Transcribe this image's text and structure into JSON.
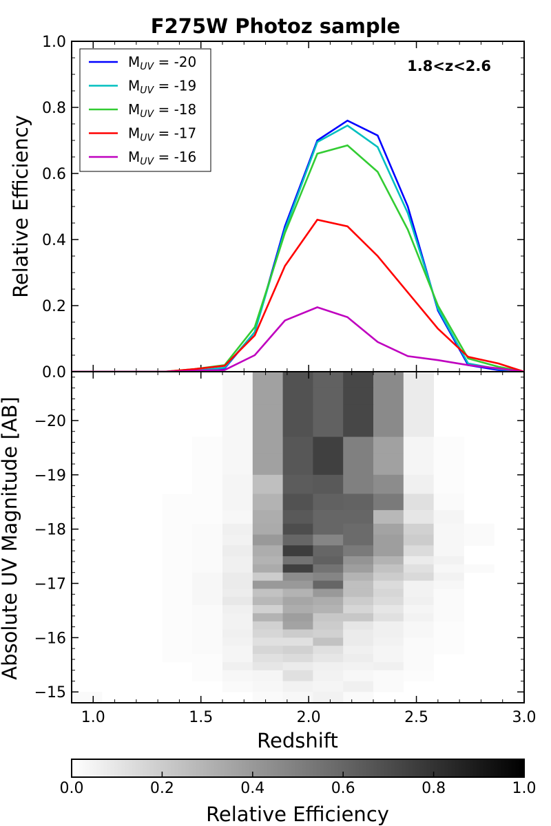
{
  "chart_data": [
    {
      "type": "line",
      "title": "F275W Photoz sample",
      "ylabel": "Relative Efficiency",
      "xlim": [
        0.9,
        3.0
      ],
      "ylim": [
        0.0,
        1.0
      ],
      "yticks": [
        "0.0",
        "0.2",
        "0.4",
        "0.6",
        "0.8",
        "1.0"
      ],
      "annotation": "1.8<z<2.6",
      "legend_position": "top-left",
      "x": [
        0.9,
        1.05,
        1.18,
        1.33,
        1.47,
        1.61,
        1.75,
        1.89,
        2.04,
        2.18,
        2.32,
        2.46,
        2.6,
        2.74,
        2.88,
        3.0
      ],
      "series": [
        {
          "name": "M_UV = -20",
          "label_main": "M",
          "label_sub": "UV",
          "label_rest": " = -20",
          "color": "#0000ff",
          "values": [
            0.0,
            0.0,
            0.0,
            0.0,
            0.002,
            0.01,
            0.12,
            0.44,
            0.7,
            0.76,
            0.715,
            0.5,
            0.185,
            0.02,
            0.005,
            0.0
          ]
        },
        {
          "name": "M_UV = -19",
          "label_main": "M",
          "label_sub": "UV",
          "label_rest": " = -19",
          "color": "#00bfbf",
          "values": [
            0.0,
            0.0,
            0.0,
            0.0,
            0.003,
            0.012,
            0.12,
            0.43,
            0.695,
            0.745,
            0.68,
            0.48,
            0.19,
            0.025,
            0.008,
            0.0
          ]
        },
        {
          "name": "M_UV = -18",
          "label_main": "M",
          "label_sub": "UV",
          "label_rest": " = -18",
          "color": "#33cc33",
          "values": [
            0.0,
            0.0,
            0.0,
            0.0,
            0.008,
            0.02,
            0.135,
            0.42,
            0.66,
            0.685,
            0.605,
            0.43,
            0.2,
            0.04,
            0.015,
            0.0
          ]
        },
        {
          "name": "M_UV = -17",
          "label_main": "M",
          "label_sub": "UV",
          "label_rest": " = -17",
          "color": "#ff0000",
          "values": [
            0.0,
            0.0,
            0.0,
            0.0,
            0.008,
            0.018,
            0.11,
            0.32,
            0.46,
            0.44,
            0.35,
            0.24,
            0.13,
            0.045,
            0.025,
            0.0
          ]
        },
        {
          "name": "M_UV = -16",
          "label_main": "M",
          "label_sub": "UV",
          "label_rest": " = -16",
          "color": "#bf00bf",
          "values": [
            0.0,
            0.0,
            0.0,
            0.0,
            0.003,
            0.005,
            0.05,
            0.155,
            0.195,
            0.165,
            0.09,
            0.047,
            0.035,
            0.02,
            0.01,
            0.0
          ]
        }
      ]
    },
    {
      "type": "heatmap",
      "xlabel": "Redshift",
      "ylabel": "Absolute UV Magnitude [AB]",
      "xlim": [
        0.9,
        3.0
      ],
      "ylim": [
        -14.8,
        -20.9
      ],
      "xticks": [
        "1.0",
        "1.5",
        "2.0",
        "2.5",
        "3.0"
      ],
      "yticks": [
        "−20",
        "−19",
        "−18",
        "−17",
        "−16",
        "−15"
      ],
      "x_edges": [
        0.9,
        1.04,
        1.18,
        1.32,
        1.46,
        1.6,
        1.74,
        1.88,
        2.02,
        2.16,
        2.3,
        2.44,
        2.58,
        2.72,
        2.86,
        3.0
      ],
      "y_edges": [
        -20.9,
        -20.6,
        -20.3,
        -20.0,
        -19.7,
        -19.4,
        -19.0,
        -18.65,
        -18.35,
        -18.1,
        -17.9,
        -17.7,
        -17.5,
        -17.35,
        -17.2,
        -17.05,
        -16.9,
        -16.75,
        -16.6,
        -16.45,
        -16.3,
        -16.15,
        -16.0,
        -15.85,
        -15.7,
        -15.55,
        -15.4,
        -15.2,
        -15.0,
        -14.8
      ],
      "z": [
        [
          0.0,
          0.0,
          0.0,
          0.0,
          0.0,
          0.03,
          0.37,
          0.68,
          0.62,
          0.72,
          0.46,
          0.08,
          0.0,
          0.0,
          0.0
        ],
        [
          0.0,
          0.0,
          0.0,
          0.0,
          0.0,
          0.03,
          0.37,
          0.68,
          0.62,
          0.72,
          0.46,
          0.08,
          0.0,
          0.0,
          0.0
        ],
        [
          0.0,
          0.0,
          0.0,
          0.0,
          0.0,
          0.03,
          0.37,
          0.68,
          0.62,
          0.72,
          0.46,
          0.08,
          0.0,
          0.0,
          0.0
        ],
        [
          0.0,
          0.0,
          0.0,
          0.0,
          0.0,
          0.03,
          0.37,
          0.68,
          0.62,
          0.72,
          0.46,
          0.08,
          0.0,
          0.0,
          0.0
        ],
        [
          0.0,
          0.0,
          0.0,
          0.0,
          0.01,
          0.03,
          0.37,
          0.66,
          0.75,
          0.5,
          0.37,
          0.04,
          0.01,
          0.0,
          0.0
        ],
        [
          0.0,
          0.0,
          0.0,
          0.0,
          0.01,
          0.03,
          0.37,
          0.66,
          0.75,
          0.5,
          0.37,
          0.04,
          0.01,
          0.0,
          0.0
        ],
        [
          0.0,
          0.0,
          0.0,
          0.0,
          0.01,
          0.04,
          0.25,
          0.64,
          0.65,
          0.5,
          0.45,
          0.06,
          0.01,
          0.0,
          0.0
        ],
        [
          0.0,
          0.0,
          0.0,
          0.01,
          0.01,
          0.04,
          0.3,
          0.68,
          0.62,
          0.61,
          0.52,
          0.12,
          0.02,
          0.0,
          0.0
        ],
        [
          0.0,
          0.0,
          0.0,
          0.01,
          0.01,
          0.03,
          0.32,
          0.65,
          0.6,
          0.6,
          0.28,
          0.1,
          0.04,
          0.0,
          0.0
        ],
        [
          0.0,
          0.0,
          0.0,
          0.01,
          0.02,
          0.06,
          0.33,
          0.7,
          0.6,
          0.58,
          0.36,
          0.18,
          0.03,
          0.02,
          0.0
        ],
        [
          0.0,
          0.0,
          0.0,
          0.01,
          0.02,
          0.05,
          0.4,
          0.6,
          0.48,
          0.58,
          0.38,
          0.2,
          0.03,
          0.02,
          0.0
        ],
        [
          0.0,
          0.0,
          0.0,
          0.01,
          0.02,
          0.07,
          0.32,
          0.76,
          0.6,
          0.52,
          0.38,
          0.14,
          0.03,
          0.0,
          0.0
        ],
        [
          0.0,
          0.0,
          0.0,
          0.01,
          0.02,
          0.06,
          0.3,
          0.55,
          0.62,
          0.42,
          0.3,
          0.08,
          0.05,
          0.0,
          0.0
        ],
        [
          0.0,
          0.0,
          0.0,
          0.01,
          0.02,
          0.06,
          0.33,
          0.75,
          0.55,
          0.38,
          0.24,
          0.12,
          0.03,
          0.02,
          0.0
        ],
        [
          0.0,
          0.0,
          0.0,
          0.01,
          0.03,
          0.08,
          0.2,
          0.45,
          0.48,
          0.3,
          0.2,
          0.15,
          0.05,
          0.0,
          0.0
        ],
        [
          0.0,
          0.0,
          0.0,
          0.01,
          0.03,
          0.08,
          0.4,
          0.4,
          0.6,
          0.25,
          0.14,
          0.05,
          0.03,
          0.0,
          0.0
        ],
        [
          0.0,
          0.0,
          0.0,
          0.01,
          0.03,
          0.07,
          0.24,
          0.3,
          0.4,
          0.25,
          0.16,
          0.05,
          0.02,
          0.0,
          0.0
        ],
        [
          0.0,
          0.0,
          0.0,
          0.01,
          0.03,
          0.09,
          0.28,
          0.35,
          0.32,
          0.2,
          0.14,
          0.06,
          0.02,
          0.0,
          0.0
        ],
        [
          0.0,
          0.0,
          0.0,
          0.01,
          0.02,
          0.06,
          0.18,
          0.32,
          0.3,
          0.16,
          0.1,
          0.04,
          0.02,
          0.0,
          0.0
        ],
        [
          0.0,
          0.0,
          0.0,
          0.01,
          0.02,
          0.05,
          0.3,
          0.38,
          0.22,
          0.22,
          0.12,
          0.05,
          0.02,
          0.0,
          0.0
        ],
        [
          0.0,
          0.0,
          0.0,
          0.01,
          0.02,
          0.05,
          0.18,
          0.36,
          0.2,
          0.1,
          0.06,
          0.03,
          0.01,
          0.0,
          0.0
        ],
        [
          0.0,
          0.0,
          0.0,
          0.01,
          0.02,
          0.06,
          0.16,
          0.2,
          0.18,
          0.08,
          0.06,
          0.03,
          0.01,
          0.0,
          0.0
        ],
        [
          0.0,
          0.0,
          0.0,
          0.01,
          0.02,
          0.05,
          0.12,
          0.12,
          0.24,
          0.08,
          0.05,
          0.02,
          0.01,
          0.0,
          0.0
        ],
        [
          0.0,
          0.0,
          0.0,
          0.01,
          0.02,
          0.04,
          0.16,
          0.18,
          0.12,
          0.06,
          0.04,
          0.02,
          0.01,
          0.0,
          0.0
        ],
        [
          0.0,
          0.0,
          0.0,
          0.01,
          0.01,
          0.04,
          0.12,
          0.14,
          0.1,
          0.07,
          0.04,
          0.02,
          0.0,
          0.0,
          0.0
        ],
        [
          0.0,
          0.0,
          0.0,
          0.0,
          0.01,
          0.06,
          0.1,
          0.08,
          0.06,
          0.05,
          0.06,
          0.02,
          0.0,
          0.0,
          0.0
        ],
        [
          0.0,
          0.0,
          0.0,
          0.0,
          0.01,
          0.03,
          0.04,
          0.12,
          0.05,
          0.03,
          0.02,
          0.01,
          0.0,
          0.0,
          0.0
        ],
        [
          0.0,
          0.0,
          0.0,
          0.0,
          0.0,
          0.02,
          0.03,
          0.05,
          0.04,
          0.06,
          0.02,
          0.0,
          0.0,
          0.0,
          0.0
        ],
        [
          0.02,
          0.0,
          0.0,
          0.0,
          0.0,
          0.0,
          0.02,
          0.03,
          0.05,
          0.02,
          0.0,
          0.0,
          0.0,
          0.0,
          0.0
        ]
      ]
    },
    {
      "type": "colorbar",
      "label": "Relative Efficiency",
      "range": [
        0.0,
        1.0
      ],
      "ticks": [
        "0.0",
        "0.2",
        "0.4",
        "0.6",
        "0.8",
        "1.0"
      ],
      "colormap": "greys"
    }
  ]
}
